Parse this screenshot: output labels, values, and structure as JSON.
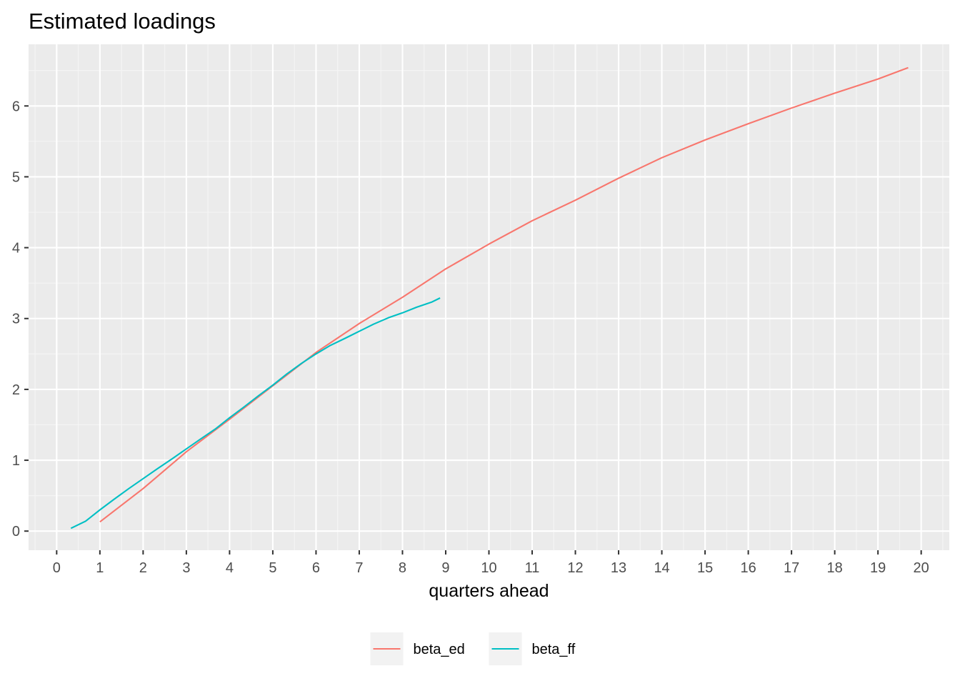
{
  "chart_data": {
    "type": "line",
    "title": "Estimated loadings",
    "xlabel": "quarters ahead",
    "ylabel": "",
    "xlim": [
      -0.65,
      20.65
    ],
    "ylim": [
      -0.27,
      6.87
    ],
    "x_ticks": [
      0,
      1,
      2,
      3,
      4,
      5,
      6,
      7,
      8,
      9,
      10,
      11,
      12,
      13,
      14,
      15,
      16,
      17,
      18,
      19,
      20
    ],
    "y_ticks": [
      0,
      1,
      2,
      3,
      4,
      5,
      6
    ],
    "grid": true,
    "legend_position": "bottom",
    "series": [
      {
        "name": "beta_ed",
        "color": "#F8766D",
        "x": [
          1.0,
          2.0,
          3.0,
          4.0,
          5.0,
          6.0,
          7.0,
          8.0,
          9.0,
          10.0,
          11.0,
          12.0,
          13.0,
          14.0,
          15.0,
          16.0,
          17.0,
          18.0,
          19.0,
          19.7
        ],
        "y": [
          0.13,
          0.6,
          1.12,
          1.58,
          2.05,
          2.52,
          2.93,
          3.3,
          3.7,
          4.05,
          4.38,
          4.67,
          4.98,
          5.27,
          5.52,
          5.75,
          5.97,
          6.18,
          6.38,
          6.54
        ]
      },
      {
        "name": "beta_ff",
        "color": "#00BFC4",
        "x": [
          0.33,
          0.67,
          1.0,
          1.33,
          1.67,
          2.0,
          2.33,
          2.67,
          3.0,
          3.33,
          3.67,
          4.0,
          4.33,
          4.67,
          5.0,
          5.33,
          5.67,
          6.0,
          6.33,
          6.67,
          7.0,
          7.33,
          7.67,
          8.0,
          8.33,
          8.67,
          8.87
        ],
        "y": [
          0.04,
          0.14,
          0.3,
          0.45,
          0.6,
          0.74,
          0.88,
          1.02,
          1.16,
          1.3,
          1.44,
          1.6,
          1.75,
          1.91,
          2.06,
          2.22,
          2.37,
          2.5,
          2.62,
          2.72,
          2.82,
          2.92,
          3.01,
          3.08,
          3.16,
          3.23,
          3.29
        ]
      }
    ]
  }
}
